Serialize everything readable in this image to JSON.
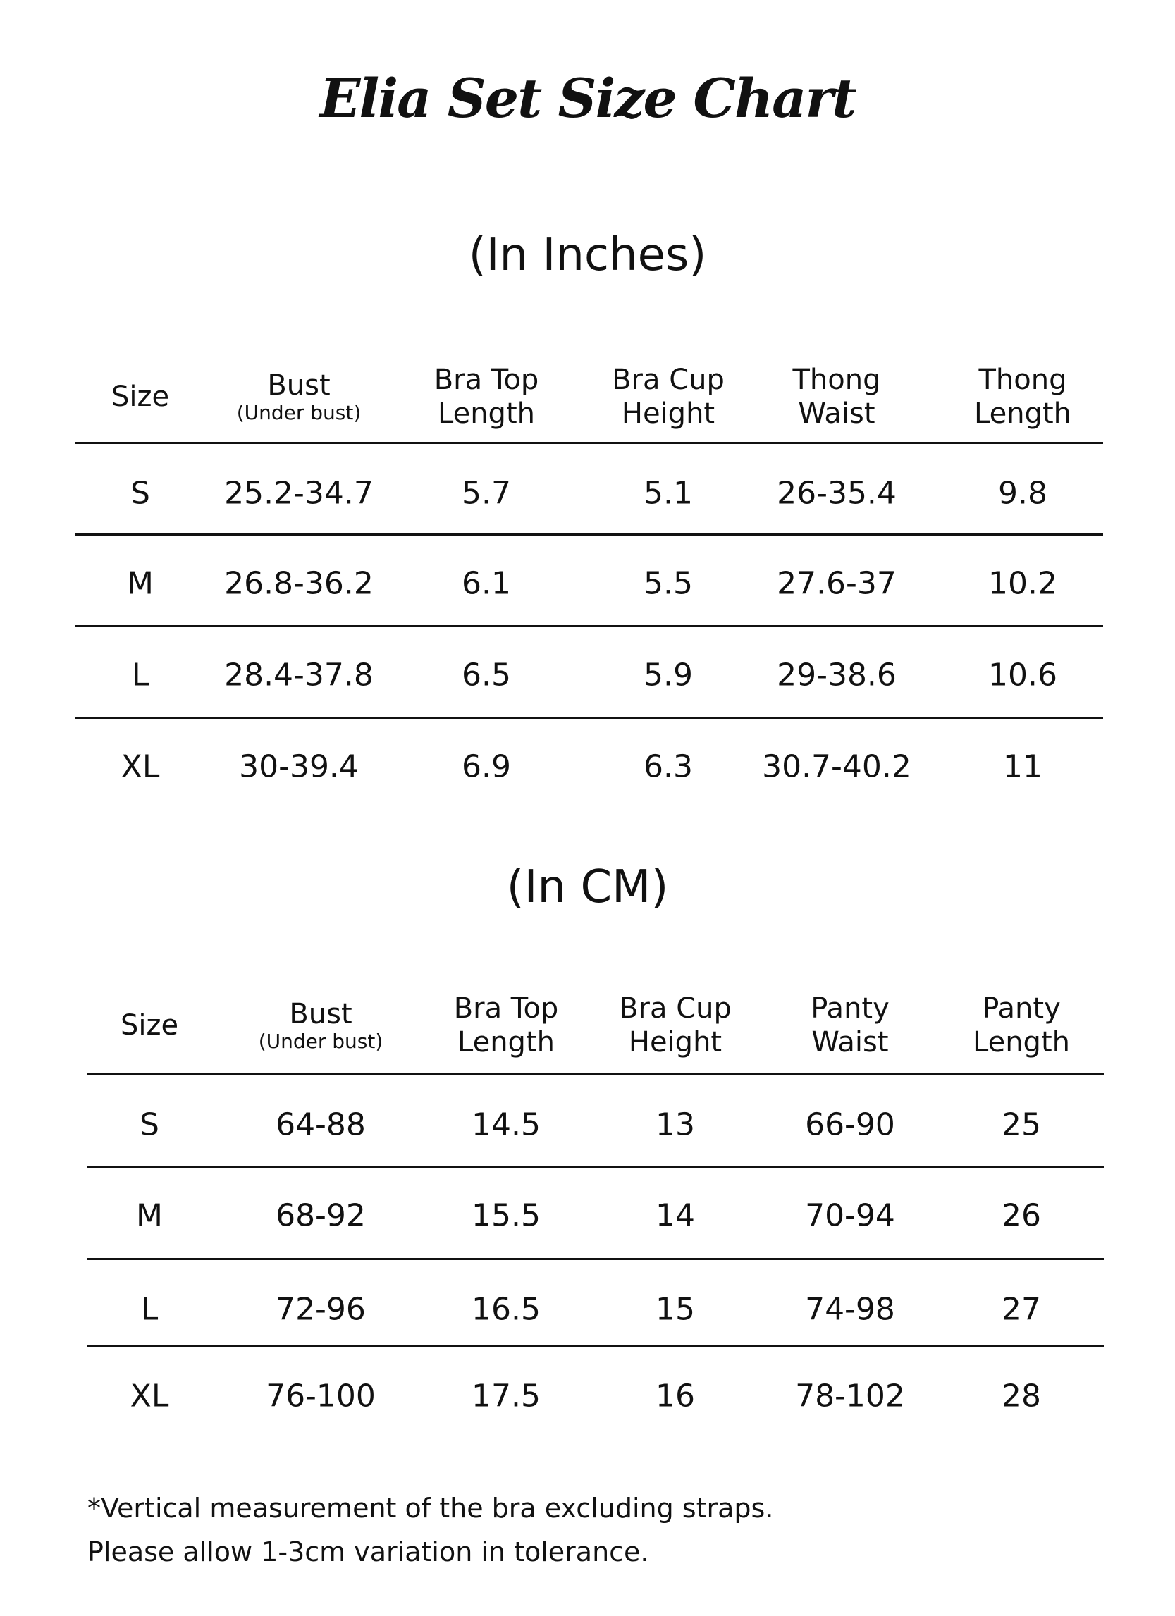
{
  "title": "Elia Set Size Chart",
  "inches": {
    "heading": "(In Inches)",
    "columns": [
      {
        "label": "Size"
      },
      {
        "label": "Bust",
        "sub": "(Under bust)"
      },
      {
        "label": "Bra Top\nLength"
      },
      {
        "label": "Bra Cup\nHeight"
      },
      {
        "label": "Thong\nWaist"
      },
      {
        "label": "Thong\nLength"
      }
    ],
    "rows": [
      [
        "S",
        "25.2-34.7",
        "5.7",
        "5.1",
        "26-35.4",
        "9.8"
      ],
      [
        "M",
        "26.8-36.2",
        "6.1",
        "5.5",
        "27.6-37",
        "10.2"
      ],
      [
        "L",
        "28.4-37.8",
        "6.5",
        "5.9",
        "29-38.6",
        "10.6"
      ],
      [
        "XL",
        "30-39.4",
        "6.9",
        "6.3",
        "30.7-40.2",
        "11"
      ]
    ]
  },
  "cm": {
    "heading": "(In CM)",
    "columns": [
      {
        "label": "Size"
      },
      {
        "label": "Bust",
        "sub": "(Under bust)"
      },
      {
        "label": "Bra Top\nLength"
      },
      {
        "label": "Bra Cup\nHeight"
      },
      {
        "label": "Panty\nWaist"
      },
      {
        "label": "Panty\nLength"
      }
    ],
    "rows": [
      [
        "S",
        "64-88",
        "14.5",
        "13",
        "66-90",
        "25"
      ],
      [
        "M",
        "68-92",
        "15.5",
        "14",
        "70-94",
        "26"
      ],
      [
        "L",
        "72-96",
        "16.5",
        "15",
        "74-98",
        "27"
      ],
      [
        "XL",
        "76-100",
        "17.5",
        "16",
        "78-102",
        "28"
      ]
    ]
  },
  "notes": [
    "*Vertical measurement of the bra excluding straps.",
    "Please allow 1-3cm variation in tolerance."
  ]
}
